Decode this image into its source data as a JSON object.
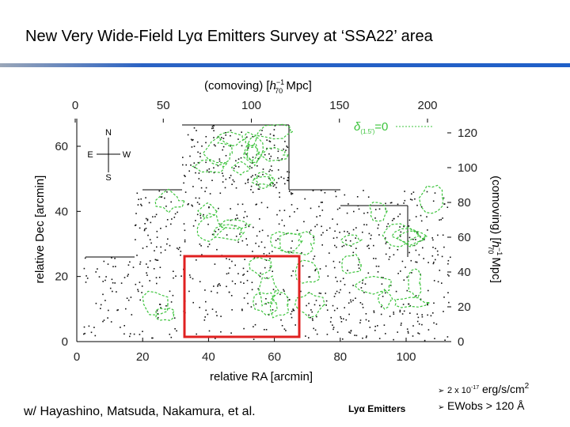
{
  "title": "New Very Wide-Field Lyα Emitters Survey at ‘SSA22’ area",
  "figure": {
    "top_label": {
      "prefix": "(comoving) [",
      "symbol": "h",
      "sup": "−1",
      "sub": "70",
      "suffix": " Mpc]"
    },
    "top_ticks": [
      0,
      50,
      100,
      150,
      200
    ],
    "bottom_ticks": [
      0,
      20,
      40,
      60,
      80,
      100
    ],
    "x_label": "relative RA [arcmin]",
    "left_ticks": [
      0,
      20,
      40,
      60
    ],
    "y_label": "relative Dec [arcmin]",
    "right_ticks": [
      0,
      20,
      40,
      60,
      80,
      100,
      120
    ],
    "right_label": {
      "prefix": "(comoving) [",
      "symbol": "h",
      "sup": "−1",
      "sub": "70",
      "suffix": " Mpc]"
    },
    "compass": {
      "north": "N",
      "east": "E",
      "west": "W",
      "south": "S"
    },
    "contour_label": {
      "symbol": "δ",
      "sub": "(1.5′)",
      "rest": "=0"
    }
  },
  "footer": {
    "credit": "w/ Hayashino, Matsuda, Nakamura, et al.",
    "marker_label": "Lyα Emitters",
    "flux": {
      "base": "2 x 10",
      "sup": "-17",
      "unit": " erg/s/cm",
      "unit_sup": "2"
    },
    "ew": "EWobs > 120 Å"
  }
}
